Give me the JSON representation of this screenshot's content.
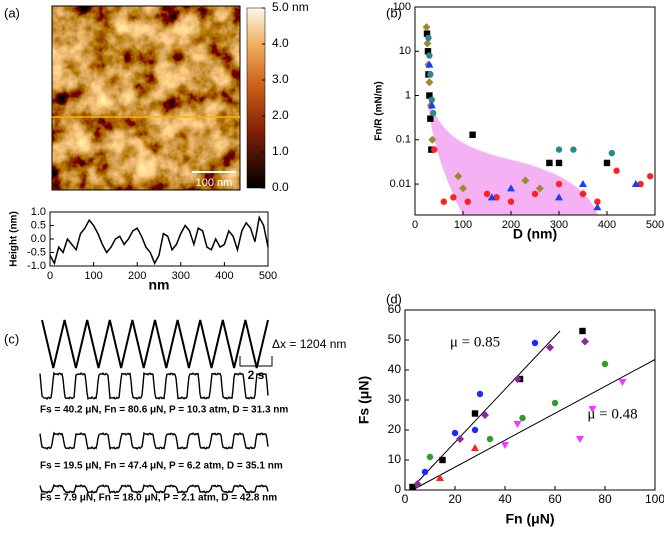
{
  "chart_data": [
    {
      "type": "image",
      "title": "(a)",
      "scale_bar": "100 nm",
      "colorbar": {
        "ylim": [
          0,
          5
        ],
        "yticks": [
          {
            "value": 5,
            "label": "5.0 nm"
          },
          {
            "value": 4,
            "label": "4.0"
          },
          {
            "value": 3,
            "label": "3.0"
          },
          {
            "value": 2,
            "label": "2.0"
          },
          {
            "value": 1,
            "label": "1.0"
          },
          {
            "value": 0,
            "label": "0.0"
          }
        ]
      }
    },
    {
      "type": "line",
      "x_label": "nm",
      "y_label": "Height (nm)",
      "color": "#000000",
      "x": [
        0,
        10,
        20,
        30,
        40,
        50,
        60,
        70,
        80,
        90,
        100,
        110,
        120,
        130,
        140,
        150,
        160,
        170,
        180,
        190,
        200,
        210,
        220,
        230,
        240,
        250,
        260,
        270,
        280,
        290,
        300,
        310,
        320,
        330,
        340,
        350,
        360,
        370,
        380,
        390,
        400,
        410,
        420,
        430,
        440,
        450,
        460,
        470,
        480,
        490,
        500
      ],
      "values": [
        -0.6,
        -0.9,
        -0.3,
        -0.5,
        0,
        -0.2,
        -0.4,
        0.2,
        0.4,
        0.7,
        0.5,
        0.2,
        -0.2,
        -0.5,
        -0.3,
        0,
        0.1,
        -0.2,
        0,
        0.3,
        0.4,
        0.1,
        -0.3,
        -0.5,
        -0.9,
        -0.6,
        0.2,
        0.1,
        -0.4,
        -0.2,
        0.2,
        0.5,
        0.3,
        -0.2,
        0.4,
        0.3,
        -0.3,
        -0.4,
        0,
        -0.3,
        -0.2,
        0.3,
        0.1,
        -0.4,
        0.3,
        0.6,
        0.4,
        -0.1,
        0.8,
        0.5,
        -0.3
      ],
      "xlim": [
        0,
        500
      ],
      "ylim": [
        -1,
        1
      ],
      "xticks": [
        0,
        100,
        200,
        300,
        400,
        500
      ],
      "yticks": [
        {
          "value": -1,
          "label": "-1.0"
        },
        {
          "value": -0.5,
          "label": "-0.5"
        },
        {
          "value": 0,
          "label": "0.0"
        },
        {
          "value": 0.5,
          "label": "0.5"
        },
        {
          "value": 1,
          "label": "1.0"
        }
      ]
    },
    {
      "type": "scatter",
      "title": "(b)",
      "x_label": "D (nm)",
      "y_label": "Fn/R (mN/m)",
      "log_y": true,
      "xlim": [
        0,
        500
      ],
      "ylim": [
        0.002,
        100
      ],
      "xticks": [
        0,
        100,
        200,
        300,
        400,
        500
      ],
      "yticks": [
        0.01,
        0.1,
        1,
        10,
        100
      ],
      "series": [
        {
          "color": "#000000",
          "marker": "square",
          "x": [
            25,
            27,
            28,
            30,
            32,
            34,
            120,
            280,
            300,
            400
          ],
          "values": [
            25,
            10,
            3,
            1,
            0.3,
            0.06,
            0.13,
            0.03,
            0.03,
            0.03
          ]
        },
        {
          "color": "#9c8a2e",
          "marker": "diamond",
          "x": [
            24,
            26,
            28,
            30,
            33,
            36,
            90,
            100,
            230,
            260,
            350
          ],
          "values": [
            35,
            15,
            5,
            2,
            0.6,
            0.1,
            0.015,
            0.008,
            0.012,
            0.008,
            0.006
          ]
        },
        {
          "color": "#2a8a8a",
          "marker": "circle",
          "x": [
            28,
            30,
            32,
            35,
            38,
            300,
            330,
            410
          ],
          "values": [
            20,
            8,
            3,
            0.8,
            0.4,
            0.06,
            0.06,
            0.05
          ]
        },
        {
          "color": "#ff2020",
          "marker": "circle",
          "x": [
            40,
            60,
            80,
            110,
            150,
            170,
            200,
            250,
            300,
            350,
            380,
            420,
            470,
            490
          ],
          "values": [
            0.06,
            0.004,
            0.005,
            0.004,
            0.006,
            0.005,
            0.004,
            0.006,
            0.01,
            0.006,
            0.004,
            0.02,
            0.01,
            0.015
          ]
        },
        {
          "color": "#1a3cff",
          "marker": "triangle",
          "x": [
            30,
            35,
            160,
            200,
            300,
            350,
            380,
            460
          ],
          "values": [
            5,
            0.6,
            0.005,
            0.008,
            0.005,
            0.01,
            0.003,
            0.01
          ]
        }
      ]
    },
    {
      "type": "signals",
      "title": "(c)",
      "amplitude_label": "Δx = 1204 nm",
      "time_label": "2 s",
      "traces": [
        "Fs = 40.2 μN, Fn = 80.6 μN, P = 10.3 atm, D = 31.3 nm",
        "Fs = 19.5 μN, Fn = 47.4 μN, P = 6.2 atm, D = 35.1 nm",
        "Fs = 7.9 μN, Fn = 18.0 μN, P = 2.1 atm, D = 42.8 nm"
      ]
    },
    {
      "type": "scatter",
      "title": "(d)",
      "x_label": "Fn (μN)",
      "y_label": "Fs (μN)",
      "xlim": [
        0,
        100
      ],
      "ylim": [
        0,
        60
      ],
      "xticks": [
        0,
        20,
        40,
        60,
        80,
        100
      ],
      "yticks": [
        0,
        10,
        20,
        30,
        40,
        50,
        60
      ],
      "series": [
        {
          "color": "#000000",
          "marker": "square",
          "x": [
            3,
            15,
            28,
            46,
            71
          ],
          "values": [
            1,
            10,
            25.5,
            37,
            53
          ]
        },
        {
          "color": "#8b2aa0",
          "marker": "diamond",
          "x": [
            5,
            22,
            32,
            45,
            58,
            72
          ],
          "values": [
            2,
            17,
            25,
            37,
            47.5,
            49.5
          ]
        },
        {
          "color": "#1a2aff",
          "marker": "circle",
          "x": [
            8,
            20,
            28,
            30,
            52
          ],
          "values": [
            6,
            19,
            20,
            32,
            49
          ]
        },
        {
          "color": "#2aa02a",
          "marker": "circle",
          "x": [
            10,
            34,
            47,
            60,
            80
          ],
          "values": [
            11,
            17,
            24,
            29,
            42
          ]
        },
        {
          "color": "#ff33ff",
          "marker": "triangle-down",
          "x": [
            40,
            45,
            70,
            75,
            87
          ],
          "values": [
            15,
            22,
            17,
            27,
            36
          ]
        },
        {
          "color": "#ff2020",
          "marker": "triangle",
          "x": [
            14,
            28
          ],
          "values": [
            4,
            14
          ]
        }
      ],
      "fits": [
        {
          "x": [
            2,
            62
          ],
          "values": [
            0,
            53
          ],
          "color": "#000000"
        },
        {
          "x": [
            3,
            100
          ],
          "values": [
            0,
            43.5
          ],
          "color": "#000000"
        }
      ],
      "annotations": [
        {
          "text": "μ = 0.85",
          "x": 28,
          "y": 49
        },
        {
          "text": "μ = 0.48",
          "x": 83,
          "y": 25
        }
      ]
    }
  ]
}
